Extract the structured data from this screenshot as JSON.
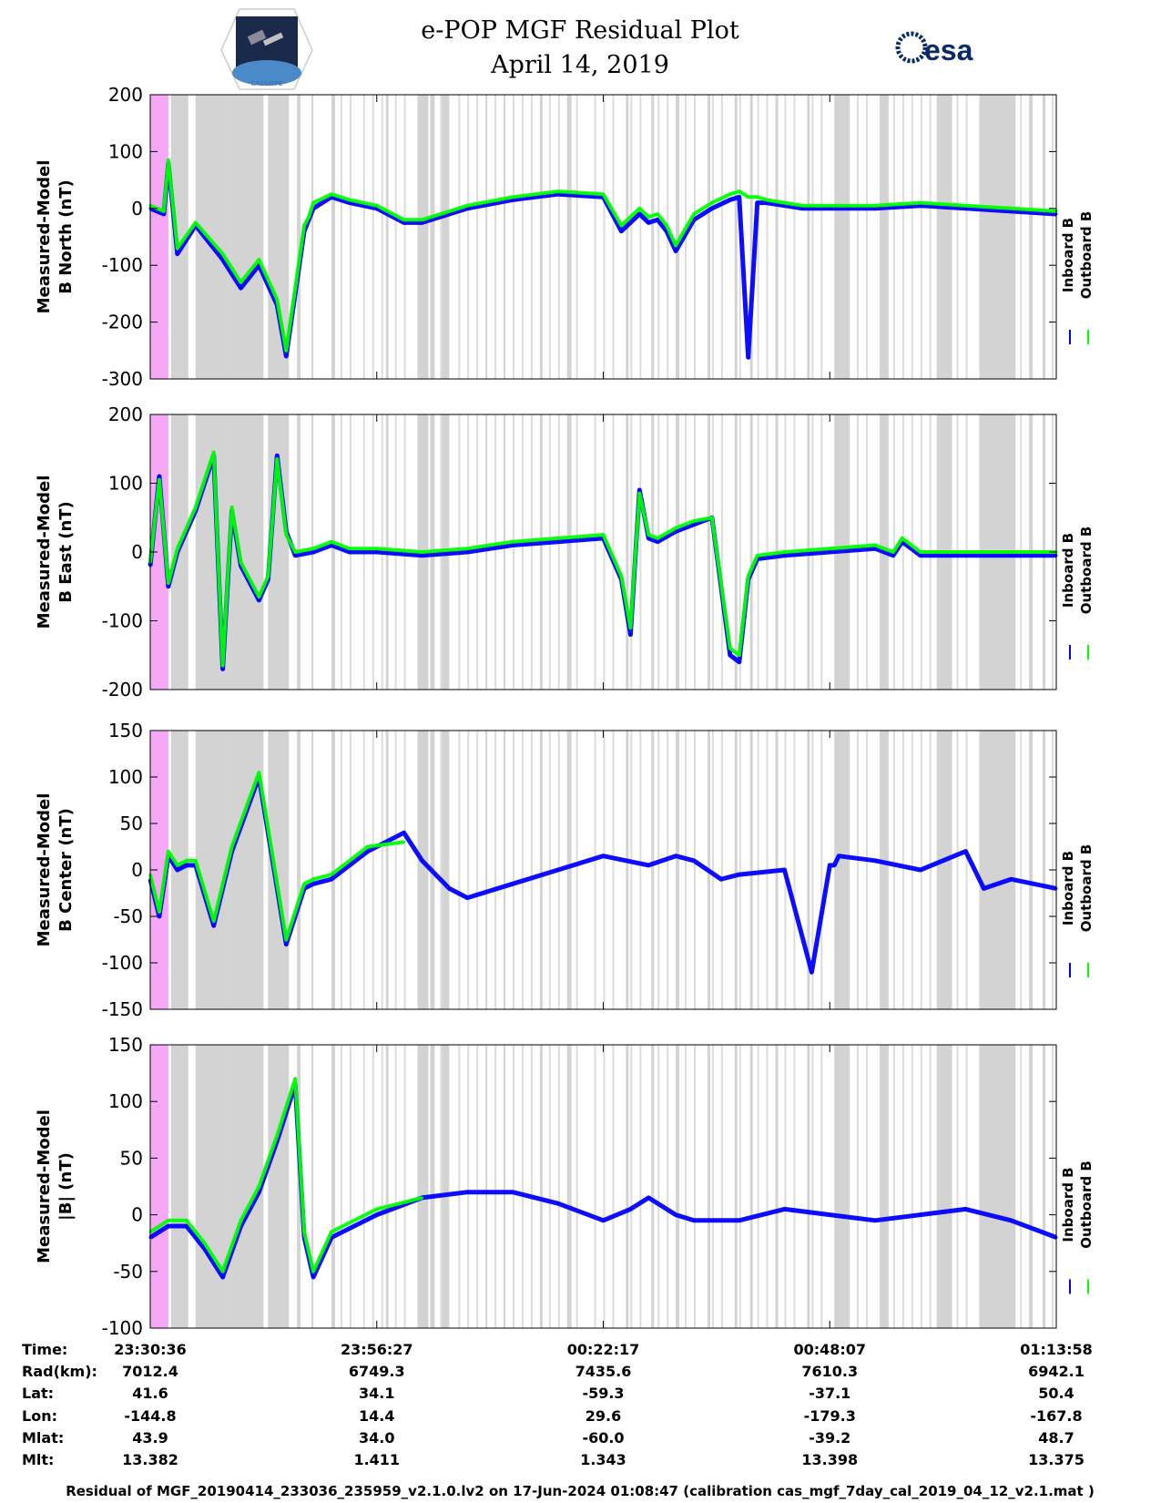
{
  "header": {
    "title": "e-POP MGF Residual Plot",
    "date": "April 14, 2019",
    "logo_left_caption": "CASSIOPE",
    "logo_right_text": "esa"
  },
  "colors": {
    "inboard": "#0000ff",
    "outboard": "#00ff00",
    "gap_shading": "#d3d3d3",
    "start_marker": "#f5a8f5",
    "axis": "#000000",
    "background": "#ffffff"
  },
  "chart_data": [
    {
      "type": "line",
      "ylabel_line1": "Measured-Model",
      "ylabel_line2": "B North (nT)",
      "ylim": [
        -300,
        200
      ],
      "yticks": [
        200,
        100,
        0,
        -100,
        -200,
        -300
      ],
      "legend": [
        "Inboard B",
        "Outboard B"
      ],
      "series": [
        {
          "name": "Inboard B",
          "color": "#0000ff",
          "x": [
            0,
            1.5,
            2,
            3,
            5,
            8,
            10,
            12,
            14,
            15,
            16,
            17,
            17.5,
            18,
            20,
            22,
            25,
            28,
            30,
            35,
            40,
            45,
            50,
            52,
            54,
            55,
            56,
            57,
            58,
            60,
            62,
            64,
            65,
            66,
            67,
            68,
            70,
            72,
            75,
            80,
            85,
            90,
            95,
            100
          ],
          "y": [
            0,
            -10,
            80,
            -80,
            -30,
            -90,
            -140,
            -100,
            -170,
            -260,
            -150,
            -40,
            -20,
            0,
            20,
            10,
            0,
            -25,
            -25,
            0,
            15,
            25,
            20,
            -40,
            -10,
            -25,
            -20,
            -40,
            -75,
            -20,
            0,
            15,
            20,
            -262,
            10,
            10,
            5,
            0,
            0,
            0,
            5,
            0,
            -5,
            -10
          ]
        },
        {
          "name": "Outboard B",
          "color": "#00ff00",
          "x": [
            0,
            1.5,
            2,
            3,
            5,
            8,
            10,
            12,
            14,
            15,
            16,
            17,
            17.5,
            18,
            20,
            22,
            25,
            28,
            30,
            35,
            40,
            45,
            50,
            52,
            54,
            55,
            56,
            57,
            58,
            60,
            62,
            64,
            65,
            66,
            67,
            68,
            70,
            72,
            75,
            80,
            85,
            90,
            95,
            100
          ],
          "y": [
            5,
            -5,
            85,
            -70,
            -25,
            -80,
            -130,
            -90,
            -160,
            -250,
            -140,
            -30,
            -15,
            10,
            25,
            15,
            5,
            -20,
            -20,
            5,
            20,
            30,
            25,
            -30,
            0,
            -15,
            -10,
            -30,
            -65,
            -10,
            10,
            25,
            30,
            20,
            20,
            15,
            10,
            5,
            5,
            5,
            10,
            5,
            0,
            -5
          ]
        }
      ]
    },
    {
      "type": "line",
      "ylabel_line1": "Measured-Model",
      "ylabel_line2": "B East (nT)",
      "ylim": [
        -200,
        200
      ],
      "yticks": [
        200,
        100,
        0,
        -100,
        -200
      ],
      "legend": [
        "Inboard B",
        "Outboard B"
      ],
      "series": [
        {
          "name": "Inboard B",
          "color": "#0000ff",
          "x": [
            0,
            1,
            2,
            3,
            5,
            7,
            8,
            9,
            10,
            12,
            13,
            14,
            15,
            16,
            18,
            20,
            22,
            25,
            30,
            35,
            40,
            45,
            50,
            52,
            53,
            54,
            55,
            56,
            58,
            60,
            62,
            64,
            65,
            66,
            67,
            70,
            75,
            80,
            82,
            83,
            85,
            88,
            90,
            95,
            100
          ],
          "y": [
            -20,
            110,
            -50,
            0,
            60,
            140,
            -170,
            60,
            -20,
            -70,
            -40,
            140,
            30,
            -5,
            0,
            10,
            0,
            0,
            -5,
            0,
            10,
            15,
            20,
            -40,
            -120,
            90,
            20,
            15,
            30,
            40,
            50,
            -150,
            -160,
            -40,
            -10,
            -5,
            0,
            5,
            -5,
            15,
            -5,
            -5,
            -5,
            -5,
            -5
          ]
        },
        {
          "name": "Outboard B",
          "color": "#00ff00",
          "x": [
            0,
            1,
            2,
            3,
            5,
            7,
            8,
            9,
            10,
            12,
            13,
            14,
            15,
            16,
            18,
            20,
            22,
            25,
            30,
            35,
            40,
            45,
            50,
            52,
            53,
            54,
            55,
            56,
            58,
            60,
            62,
            64,
            65,
            66,
            67,
            70,
            75,
            80,
            82,
            83,
            85,
            88,
            90,
            95,
            100
          ],
          "y": [
            -15,
            105,
            -45,
            5,
            65,
            145,
            -165,
            65,
            -15,
            -65,
            -35,
            135,
            25,
            0,
            5,
            15,
            5,
            5,
            0,
            5,
            15,
            20,
            25,
            -35,
            -110,
            85,
            25,
            20,
            35,
            45,
            50,
            -140,
            -150,
            -35,
            -5,
            0,
            5,
            10,
            0,
            20,
            0,
            0,
            0,
            0,
            0
          ]
        }
      ]
    },
    {
      "type": "line",
      "ylabel_line1": "Measured-Model",
      "ylabel_line2": "B Center (nT)",
      "ylim": [
        -150,
        150
      ],
      "yticks": [
        150,
        100,
        50,
        0,
        -50,
        -100,
        -150
      ],
      "legend": [
        "Inboard B",
        "Outboard B"
      ],
      "series": [
        {
          "name": "Inboard B",
          "color": "#0000ff",
          "x": [
            0,
            1,
            2,
            3,
            4,
            5,
            7,
            9,
            12,
            15,
            16,
            17,
            18,
            20,
            24,
            28,
            30,
            33,
            35,
            40,
            45,
            50,
            55,
            58,
            60,
            63,
            65,
            70,
            73,
            75,
            75.5,
            76,
            80,
            85,
            90,
            92,
            95,
            100
          ],
          "y": [
            -10,
            -50,
            15,
            0,
            5,
            5,
            -60,
            20,
            100,
            -80,
            -50,
            -20,
            -15,
            -10,
            20,
            40,
            10,
            -20,
            -30,
            -15,
            0,
            15,
            5,
            15,
            10,
            -10,
            -5,
            0,
            -110,
            5,
            5,
            15,
            10,
            0,
            20,
            -20,
            -10,
            -20
          ]
        },
        {
          "name": "Outboard B",
          "color": "#00ff00",
          "x": [
            0,
            1,
            2,
            3,
            4,
            5,
            7,
            9,
            12,
            15,
            16,
            17,
            18,
            20,
            24,
            28
          ],
          "y": [
            -5,
            -45,
            20,
            5,
            10,
            10,
            -55,
            25,
            105,
            -75,
            -45,
            -15,
            -10,
            -5,
            25,
            30
          ]
        }
      ]
    },
    {
      "type": "line",
      "ylabel_line1": "Measured-Model",
      "ylabel_line2": "|B| (nT)",
      "ylim": [
        -100,
        150
      ],
      "yticks": [
        150,
        100,
        50,
        0,
        -50,
        -100
      ],
      "legend": [
        "Inboard B",
        "Outboard B"
      ],
      "series": [
        {
          "name": "Inboard B",
          "color": "#0000ff",
          "x": [
            0,
            2,
            4,
            6,
            8,
            10,
            12,
            14,
            16,
            17,
            18,
            20,
            25,
            30,
            35,
            40,
            45,
            50,
            53,
            55,
            58,
            60,
            65,
            70,
            75,
            80,
            85,
            90,
            95,
            100
          ],
          "y": [
            -20,
            -10,
            -10,
            -30,
            -55,
            -10,
            20,
            65,
            115,
            -20,
            -55,
            -20,
            0,
            15,
            20,
            20,
            10,
            -5,
            5,
            15,
            0,
            -5,
            -5,
            5,
            0,
            -5,
            0,
            5,
            -5,
            -20
          ]
        },
        {
          "name": "Outboard B",
          "color": "#00ff00",
          "x": [
            0,
            2,
            4,
            6,
            8,
            10,
            12,
            14,
            16,
            17,
            18,
            20,
            25,
            30
          ],
          "y": [
            -15,
            -5,
            -5,
            -25,
            -50,
            -5,
            25,
            70,
            120,
            -15,
            -50,
            -15,
            5,
            15
          ]
        }
      ]
    }
  ],
  "x_axis": {
    "tick_positions": [
      0,
      25,
      50,
      75,
      100
    ],
    "row_labels": [
      "Time:",
      "Rad(km):",
      "Lat:",
      "Lon:",
      "Mlat:",
      "Mlt:"
    ],
    "columns": [
      [
        "23:30:36",
        "7012.4",
        "41.6",
        "-144.8",
        "43.9",
        "13.382"
      ],
      [
        "23:56:27",
        "6749.3",
        "34.1",
        "14.4",
        "34.0",
        "1.411"
      ],
      [
        "00:22:17",
        "7435.6",
        "-59.3",
        "29.6",
        "-60.0",
        "1.343"
      ],
      [
        "00:48:07",
        "7610.3",
        "-37.1",
        "-179.3",
        "-39.2",
        "13.398"
      ],
      [
        "01:13:58",
        "6942.1",
        "50.4",
        "-167.8",
        "48.7",
        "13.375"
      ]
    ]
  },
  "shading": {
    "start_marker_range": [
      0,
      2
    ],
    "gray_bands": [
      [
        2.3,
        4.2
      ],
      [
        5,
        8.5
      ],
      [
        8.5,
        12.5
      ],
      [
        13,
        15.3
      ],
      [
        16.2,
        16.6
      ],
      [
        17.8,
        18
      ],
      [
        20,
        20.4
      ],
      [
        26,
        26.3
      ],
      [
        29.5,
        30.7
      ],
      [
        30.9,
        31.4
      ],
      [
        32.2,
        33
      ],
      [
        37,
        37.2
      ],
      [
        39,
        39.2
      ],
      [
        43,
        43.3
      ],
      [
        46,
        46.5
      ],
      [
        52.5,
        52.8
      ],
      [
        55.3,
        55.6
      ],
      [
        58,
        58.4
      ],
      [
        61.5,
        61.8
      ],
      [
        64.5,
        64.8
      ],
      [
        66.2,
        66.5
      ],
      [
        69,
        69.3
      ],
      [
        72.5,
        72.8
      ],
      [
        75.5,
        77.2
      ],
      [
        80.5,
        81.5
      ],
      [
        86.8,
        88.5
      ],
      [
        91.5,
        95.5
      ],
      [
        97,
        97.4
      ],
      [
        98.5,
        98.8
      ]
    ],
    "light_lines": [
      21,
      22,
      23.5,
      24.5,
      25.5,
      27,
      28,
      32,
      34,
      35,
      36,
      38,
      40,
      41,
      42,
      44,
      45,
      47,
      49,
      50,
      51,
      53,
      54,
      56,
      57,
      59,
      60,
      62,
      63,
      65,
      67,
      68,
      70,
      71,
      73,
      74,
      78,
      79,
      82,
      83,
      84,
      85,
      86,
      89,
      90,
      96,
      99.5
    ]
  },
  "footer": "Residual of MGF_20190414_233036_235959_v2.1.0.lv2 on 17-Jun-2024 01:08:47 (calibration cas_mgf_7day_cal_2019_04_12_v2.1.mat )"
}
